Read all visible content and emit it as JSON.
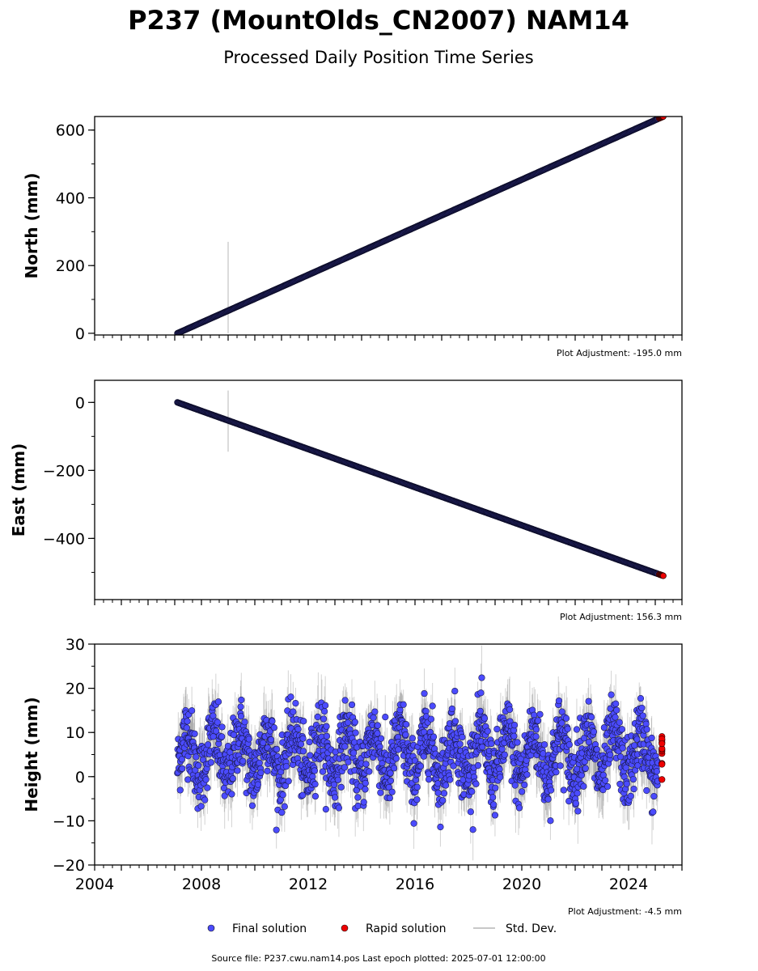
{
  "chart_data": {
    "type": "scatter",
    "title": "P237 (MountOlds_CN2007) NAM14",
    "subtitle": "Processed Daily Position Time Series",
    "x_range": [
      2004,
      2026
    ],
    "x_ticks": [
      "2004",
      "2008",
      "2012",
      "2016",
      "2020",
      "2024"
    ],
    "panels": [
      {
        "ylabel": "North (mm)",
        "ylim": [
          -5,
          640
        ],
        "y_ticks": [
          "0",
          "200",
          "400",
          "600"
        ],
        "y_tick_values": [
          0,
          200,
          400,
          600
        ],
        "adjustment": "Plot Adjustment: -195.0 mm",
        "trend_start": [
          2007.1,
          0
        ],
        "trend_end": [
          2025.3,
          640
        ],
        "outlier_std": [
          2009.0,
          270,
          0
        ]
      },
      {
        "ylabel": "East (mm)",
        "ylim": [
          -580,
          65
        ],
        "y_ticks": [
          "0",
          "−200",
          "−400"
        ],
        "y_tick_values": [
          0,
          -200,
          -400
        ],
        "adjustment": "Plot Adjustment: 156.3 mm",
        "trend_start": [
          2007.1,
          0
        ],
        "trend_end": [
          2025.3,
          -510
        ],
        "outlier_std": [
          2009.0,
          35,
          -145
        ]
      },
      {
        "ylabel": "Height (mm)",
        "ylim": [
          -20,
          30
        ],
        "y_ticks": [
          "−20",
          "−10",
          "0",
          "10",
          "20",
          "30"
        ],
        "y_tick_values": [
          -20,
          -10,
          0,
          10,
          20,
          30
        ],
        "adjustment": "Plot Adjustment: -4.5 mm",
        "mean": 5,
        "seasonal_amplitude": 5,
        "noise_sd": 4,
        "range": [
          -15,
          27
        ]
      }
    ],
    "series": [
      {
        "name": "Final solution",
        "color": "#4b4bff",
        "start": 2007.1,
        "end": 2025.1
      },
      {
        "name": "Rapid solution",
        "color": "#ee0000",
        "start": 2025.15,
        "end": 2025.3
      },
      {
        "name": "Std. Dev.",
        "color": "#c8c8c8"
      }
    ]
  },
  "footer": "Source file: P237.cwu.nam14.pos  Last epoch plotted: 2025-07-01 12:00:00"
}
